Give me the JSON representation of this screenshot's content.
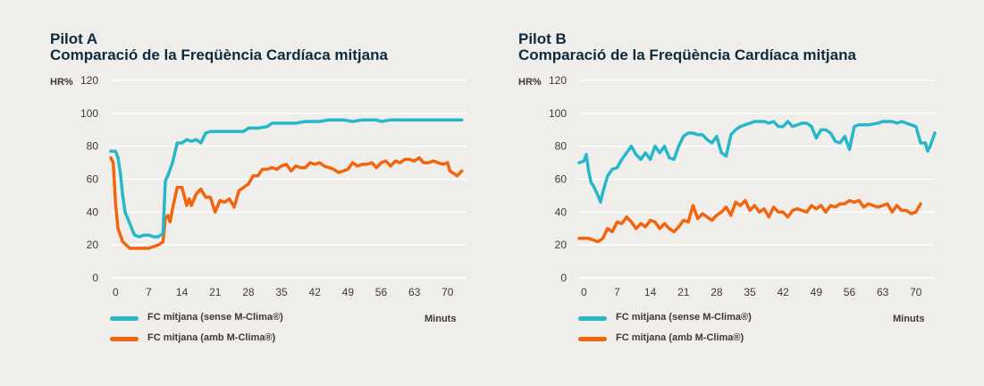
{
  "colors": {
    "background": "#f0eeea",
    "sense": "#26b8c9",
    "amb": "#f2650e",
    "grid": "#ffffff",
    "title": "#0e2b3d",
    "text": "#3e3a35"
  },
  "chart_data": [
    {
      "type": "line",
      "title": "Pilot A",
      "subtitle": "Comparació de la Freqüència Cardíaca mitjana",
      "ylabel": "HR%",
      "xlabel": "Minuts",
      "ylim": [
        0,
        120
      ],
      "xlim": [
        -1,
        74
      ],
      "y_ticks": [
        0,
        20,
        40,
        60,
        80,
        100,
        120
      ],
      "x_ticks": [
        0,
        7,
        14,
        21,
        28,
        35,
        42,
        49,
        56,
        63,
        70
      ],
      "grid": true,
      "legend_position": "bottom-left",
      "series": [
        {
          "name": "FC mitjana (sense M-Clima®)",
          "color": "#26b8c9",
          "points": [
            [
              -1,
              77
            ],
            [
              0,
              77
            ],
            [
              0.5,
              73
            ],
            [
              1,
              64
            ],
            [
              1.5,
              50
            ],
            [
              2,
              40
            ],
            [
              3,
              33
            ],
            [
              4,
              26
            ],
            [
              5,
              25
            ],
            [
              6,
              26
            ],
            [
              7,
              26
            ],
            [
              8,
              25
            ],
            [
              9,
              25
            ],
            [
              10,
              27
            ],
            [
              10.5,
              59
            ],
            [
              11,
              62
            ],
            [
              12,
              70
            ],
            [
              13,
              82
            ],
            [
              14,
              82
            ],
            [
              15,
              84
            ],
            [
              16,
              83
            ],
            [
              17,
              84
            ],
            [
              18,
              82
            ],
            [
              19,
              88
            ],
            [
              20,
              89
            ],
            [
              21,
              89
            ],
            [
              23,
              89
            ],
            [
              25,
              89
            ],
            [
              27,
              89
            ],
            [
              28,
              91
            ],
            [
              30,
              91
            ],
            [
              32,
              92
            ],
            [
              33,
              94
            ],
            [
              35,
              94
            ],
            [
              38,
              94
            ],
            [
              40,
              95
            ],
            [
              43,
              95
            ],
            [
              45,
              96
            ],
            [
              48,
              96
            ],
            [
              50,
              95
            ],
            [
              52,
              96
            ],
            [
              55,
              96
            ],
            [
              56,
              95
            ],
            [
              58,
              96
            ],
            [
              60,
              96
            ],
            [
              62,
              96
            ],
            [
              65,
              96
            ],
            [
              68,
              96
            ],
            [
              70,
              96
            ],
            [
              72,
              96
            ],
            [
              73,
              96
            ]
          ]
        },
        {
          "name": "FC mitjana (amb M-Clima®)",
          "color": "#f2650e",
          "points": [
            [
              -1,
              73
            ],
            [
              -0.5,
              70
            ],
            [
              0,
              45
            ],
            [
              0.5,
              30
            ],
            [
              1.5,
              22
            ],
            [
              3,
              18
            ],
            [
              5,
              18
            ],
            [
              7,
              18
            ],
            [
              8,
              19
            ],
            [
              9,
              20
            ],
            [
              10,
              22
            ],
            [
              10.5,
              36
            ],
            [
              11,
              38
            ],
            [
              11.5,
              34
            ],
            [
              12,
              42
            ],
            [
              13,
              55
            ],
            [
              14,
              55
            ],
            [
              15,
              44
            ],
            [
              15.5,
              48
            ],
            [
              16,
              44
            ],
            [
              17,
              51
            ],
            [
              18,
              54
            ],
            [
              19,
              49
            ],
            [
              20,
              49
            ],
            [
              21,
              40
            ],
            [
              22,
              47
            ],
            [
              23,
              46
            ],
            [
              24,
              48
            ],
            [
              25,
              43
            ],
            [
              26,
              53
            ],
            [
              27,
              55
            ],
            [
              28,
              57
            ],
            [
              29,
              62
            ],
            [
              30,
              62
            ],
            [
              31,
              66
            ],
            [
              32,
              66
            ],
            [
              33,
              67
            ],
            [
              34,
              66
            ],
            [
              35,
              68
            ],
            [
              36,
              69
            ],
            [
              37,
              65
            ],
            [
              38,
              68
            ],
            [
              39,
              67
            ],
            [
              40,
              67
            ],
            [
              41,
              70
            ],
            [
              42,
              69
            ],
            [
              43,
              70
            ],
            [
              44,
              68
            ],
            [
              46,
              66
            ],
            [
              47,
              64
            ],
            [
              48,
              65
            ],
            [
              49,
              66
            ],
            [
              50,
              70
            ],
            [
              51,
              68
            ],
            [
              52,
              69
            ],
            [
              53,
              69
            ],
            [
              54,
              70
            ],
            [
              55,
              67
            ],
            [
              56,
              70
            ],
            [
              57,
              71
            ],
            [
              58,
              68
            ],
            [
              59,
              71
            ],
            [
              60,
              70
            ],
            [
              61,
              72
            ],
            [
              62,
              72
            ],
            [
              63,
              71
            ],
            [
              64,
              73
            ],
            [
              65,
              70
            ],
            [
              66,
              70
            ],
            [
              67,
              71
            ],
            [
              68,
              70
            ],
            [
              69,
              69
            ],
            [
              70,
              70
            ],
            [
              70.5,
              65
            ],
            [
              71,
              64
            ],
            [
              72,
              62
            ],
            [
              73,
              65
            ]
          ]
        }
      ]
    },
    {
      "type": "line",
      "title": "Pilot B",
      "subtitle": "Comparació de la Freqüència Cardíaca mitjana",
      "ylabel": "HR%",
      "xlabel": "Minuts",
      "ylim": [
        0,
        120
      ],
      "xlim": [
        -1,
        74
      ],
      "y_ticks": [
        0,
        20,
        40,
        60,
        80,
        100,
        120
      ],
      "x_ticks": [
        0,
        7,
        14,
        21,
        28,
        35,
        42,
        49,
        56,
        63,
        70
      ],
      "grid": true,
      "legend_position": "bottom-left",
      "series": [
        {
          "name": "FC mitjana (sense M-Clima®)",
          "color": "#26b8c9",
          "points": [
            [
              -1,
              70
            ],
            [
              0,
              71
            ],
            [
              0.5,
              75
            ],
            [
              1,
              65
            ],
            [
              1.5,
              58
            ],
            [
              2,
              56
            ],
            [
              3,
              50
            ],
            [
              3.5,
              46
            ],
            [
              4,
              52
            ],
            [
              5,
              62
            ],
            [
              6,
              66
            ],
            [
              7,
              67
            ],
            [
              8,
              72
            ],
            [
              9,
              76
            ],
            [
              10,
              80
            ],
            [
              11,
              75
            ],
            [
              12,
              72
            ],
            [
              13,
              76
            ],
            [
              14,
              72
            ],
            [
              15,
              80
            ],
            [
              16,
              76
            ],
            [
              17,
              80
            ],
            [
              18,
              73
            ],
            [
              19,
              72
            ],
            [
              20,
              80
            ],
            [
              21,
              86
            ],
            [
              22,
              88
            ],
            [
              23,
              88
            ],
            [
              24,
              87
            ],
            [
              25,
              87
            ],
            [
              26,
              84
            ],
            [
              27,
              82
            ],
            [
              28,
              86
            ],
            [
              29,
              76
            ],
            [
              30,
              74
            ],
            [
              31,
              87
            ],
            [
              32,
              90
            ],
            [
              33,
              92
            ],
            [
              34,
              93
            ],
            [
              35,
              94
            ],
            [
              36,
              95
            ],
            [
              37,
              95
            ],
            [
              38,
              95
            ],
            [
              39,
              94
            ],
            [
              40,
              95
            ],
            [
              41,
              92
            ],
            [
              42,
              92
            ],
            [
              43,
              95
            ],
            [
              44,
              92
            ],
            [
              45,
              93
            ],
            [
              46,
              94
            ],
            [
              47,
              94
            ],
            [
              48,
              92
            ],
            [
              49,
              85
            ],
            [
              50,
              90
            ],
            [
              51,
              90
            ],
            [
              52,
              88
            ],
            [
              53,
              83
            ],
            [
              54,
              82
            ],
            [
              55,
              86
            ],
            [
              56,
              78
            ],
            [
              57,
              92
            ],
            [
              58,
              93
            ],
            [
              60,
              93
            ],
            [
              62,
              94
            ],
            [
              63,
              95
            ],
            [
              64,
              95
            ],
            [
              65,
              95
            ],
            [
              66,
              94
            ],
            [
              67,
              95
            ],
            [
              68,
              94
            ],
            [
              69,
              93
            ],
            [
              70,
              92
            ],
            [
              71,
              82
            ],
            [
              72,
              82
            ],
            [
              72.5,
              77
            ],
            [
              73,
              80
            ],
            [
              74,
              88
            ]
          ]
        },
        {
          "name": "FC mitjana (amb M-Clima®)",
          "color": "#f2650e",
          "points": [
            [
              -1,
              24
            ],
            [
              1,
              24
            ],
            [
              2,
              23
            ],
            [
              3,
              22
            ],
            [
              4,
              24
            ],
            [
              5,
              30
            ],
            [
              6,
              28
            ],
            [
              7,
              34
            ],
            [
              8,
              33
            ],
            [
              9,
              37
            ],
            [
              10,
              34
            ],
            [
              11,
              30
            ],
            [
              12,
              33
            ],
            [
              13,
              31
            ],
            [
              14,
              35
            ],
            [
              15,
              34
            ],
            [
              16,
              30
            ],
            [
              17,
              33
            ],
            [
              18,
              30
            ],
            [
              19,
              28
            ],
            [
              20,
              31
            ],
            [
              21,
              35
            ],
            [
              22,
              34
            ],
            [
              23,
              44
            ],
            [
              24,
              36
            ],
            [
              25,
              39
            ],
            [
              26,
              37
            ],
            [
              27,
              35
            ],
            [
              28,
              38
            ],
            [
              29,
              40
            ],
            [
              30,
              43
            ],
            [
              31,
              38
            ],
            [
              32,
              46
            ],
            [
              33,
              44
            ],
            [
              34,
              47
            ],
            [
              35,
              41
            ],
            [
              36,
              44
            ],
            [
              37,
              40
            ],
            [
              38,
              42
            ],
            [
              39,
              37
            ],
            [
              40,
              43
            ],
            [
              41,
              40
            ],
            [
              42,
              40
            ],
            [
              43,
              37
            ],
            [
              44,
              41
            ],
            [
              45,
              42
            ],
            [
              46,
              41
            ],
            [
              47,
              40
            ],
            [
              48,
              44
            ],
            [
              49,
              42
            ],
            [
              50,
              44
            ],
            [
              51,
              40
            ],
            [
              52,
              44
            ],
            [
              53,
              43
            ],
            [
              54,
              45
            ],
            [
              55,
              45
            ],
            [
              56,
              47
            ],
            [
              57,
              46
            ],
            [
              58,
              47
            ],
            [
              59,
              43
            ],
            [
              60,
              45
            ],
            [
              61,
              44
            ],
            [
              62,
              43
            ],
            [
              63,
              44
            ],
            [
              64,
              45
            ],
            [
              65,
              40
            ],
            [
              66,
              44
            ],
            [
              67,
              41
            ],
            [
              68,
              41
            ],
            [
              69,
              39
            ],
            [
              70,
              40
            ],
            [
              71,
              45
            ]
          ]
        }
      ]
    }
  ]
}
